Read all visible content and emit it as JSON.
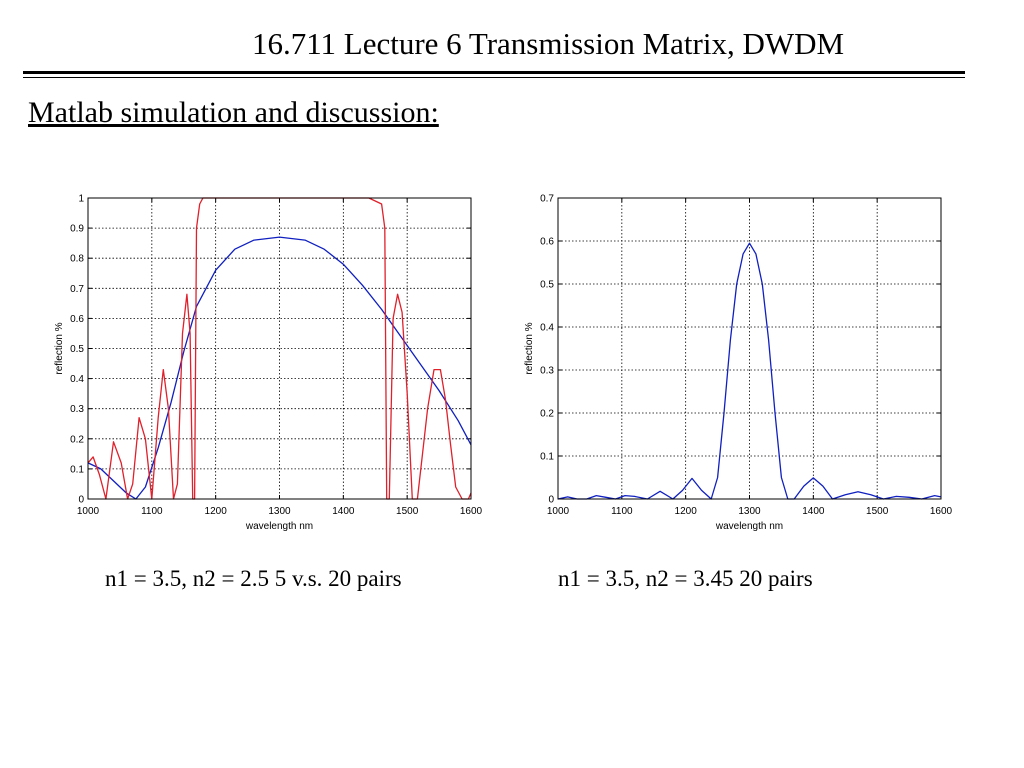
{
  "slide": {
    "title": "16.711 Lecture 6 Transmission Matrix, DWDM",
    "heading": "Matlab simulation and discussion:"
  },
  "captions": {
    "left": "n1 = 3.5, n2 = 2.5 5 v.s. 20 pairs",
    "right": "n1 = 3.5, n2 = 3.45 20 pairs"
  },
  "colors": {
    "red": "#e0202a",
    "blue": "#1020c0",
    "grid": "#000000"
  },
  "chart_data": [
    {
      "type": "line",
      "xlabel": "wavelength nm",
      "ylabel": "reflection %",
      "xlim": [
        1000,
        1600
      ],
      "ylim": [
        0,
        1
      ],
      "xticks": [
        "1000",
        "1100",
        "1200",
        "1300",
        "1400",
        "1500",
        "1600"
      ],
      "yticks": [
        "0",
        "0.1",
        "0.2",
        "0.3",
        "0.4",
        "0.5",
        "0.6",
        "0.7",
        "0.8",
        "0.9",
        "1"
      ],
      "grid": true,
      "series": [
        {
          "color": "#1020c0",
          "x": [
            1000,
            1020,
            1040,
            1060,
            1075,
            1090,
            1110,
            1130,
            1150,
            1170,
            1200,
            1230,
            1260,
            1300,
            1340,
            1370,
            1400,
            1430,
            1460,
            1490,
            1520,
            1550,
            1580,
            1600
          ],
          "y": [
            0.12,
            0.1,
            0.06,
            0.02,
            0.0,
            0.04,
            0.17,
            0.32,
            0.49,
            0.64,
            0.76,
            0.83,
            0.86,
            0.87,
            0.86,
            0.83,
            0.78,
            0.71,
            0.63,
            0.54,
            0.45,
            0.36,
            0.26,
            0.18
          ]
        },
        {
          "color": "#e0202a",
          "x": [
            1000,
            1008,
            1018,
            1028,
            1040,
            1052,
            1062,
            1070,
            1080,
            1090,
            1100,
            1110,
            1118,
            1126,
            1134,
            1140,
            1148,
            1155,
            1160,
            1164,
            1167,
            1170,
            1175,
            1180,
            1200,
            1300,
            1440,
            1460,
            1465,
            1468,
            1472,
            1475,
            1478,
            1485,
            1492,
            1500,
            1508,
            1516,
            1524,
            1532,
            1542,
            1552,
            1560,
            1568,
            1576,
            1586,
            1596,
            1600
          ],
          "y": [
            0.12,
            0.14,
            0.08,
            0.0,
            0.19,
            0.12,
            0.0,
            0.05,
            0.27,
            0.2,
            0.0,
            0.27,
            0.43,
            0.3,
            0.0,
            0.05,
            0.55,
            0.68,
            0.55,
            0.0,
            0.0,
            0.9,
            0.98,
            1.0,
            1.0,
            1.0,
            1.0,
            0.98,
            0.9,
            0.0,
            0.0,
            0.3,
            0.6,
            0.68,
            0.62,
            0.35,
            0.0,
            0.0,
            0.15,
            0.3,
            0.43,
            0.43,
            0.33,
            0.18,
            0.04,
            0.0,
            0.0,
            0.02
          ]
        }
      ]
    },
    {
      "type": "line",
      "xlabel": "wavelength nm",
      "ylabel": "reflection %",
      "xlim": [
        1000,
        1600
      ],
      "ylim": [
        0,
        0.7
      ],
      "xticks": [
        "1000",
        "1100",
        "1200",
        "1300",
        "1400",
        "1500",
        "1600"
      ],
      "yticks": [
        "0",
        "0.1",
        "0.2",
        "0.3",
        "0.4",
        "0.5",
        "0.6",
        "0.7"
      ],
      "grid": true,
      "series": [
        {
          "color": "#1020c0",
          "x": [
            1000,
            1015,
            1030,
            1045,
            1060,
            1075,
            1090,
            1105,
            1120,
            1140,
            1160,
            1180,
            1195,
            1210,
            1225,
            1240,
            1250,
            1260,
            1270,
            1280,
            1290,
            1300,
            1310,
            1320,
            1330,
            1340,
            1350,
            1360,
            1370,
            1385,
            1400,
            1415,
            1430,
            1450,
            1470,
            1490,
            1510,
            1530,
            1550,
            1570,
            1590,
            1600
          ],
          "y": [
            0.0,
            0.005,
            0.0,
            0.0,
            0.008,
            0.004,
            0.0,
            0.008,
            0.006,
            0.0,
            0.018,
            0.0,
            0.02,
            0.048,
            0.02,
            0.0,
            0.05,
            0.2,
            0.37,
            0.5,
            0.57,
            0.595,
            0.57,
            0.5,
            0.37,
            0.2,
            0.05,
            0.0,
            0.0,
            0.03,
            0.049,
            0.03,
            0.0,
            0.01,
            0.017,
            0.01,
            0.0,
            0.006,
            0.004,
            0.0,
            0.008,
            0.005
          ]
        }
      ]
    }
  ]
}
